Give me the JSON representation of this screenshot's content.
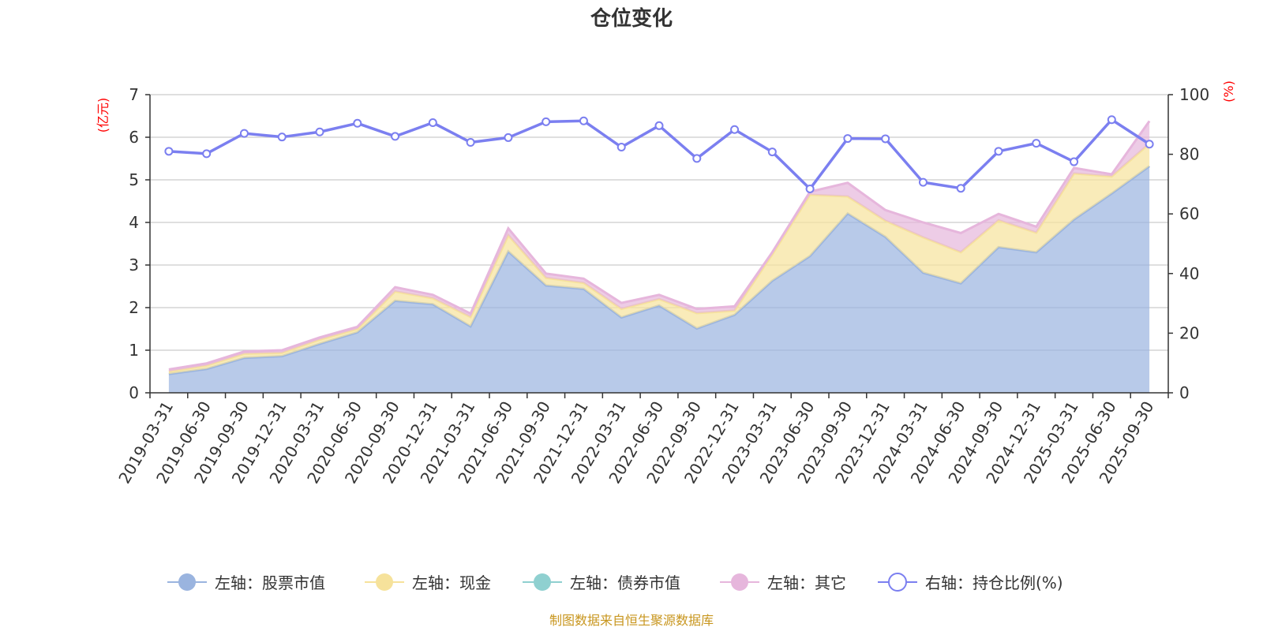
{
  "chart_data": {
    "type": "area",
    "title": "仓位变化",
    "left_axis_unit": "(亿元)",
    "right_axis_unit": "(%)",
    "ylim_left": [
      0,
      7
    ],
    "left_ticks": [
      0,
      1,
      2,
      3,
      4,
      5,
      6,
      7
    ],
    "ylim_right": [
      0,
      100
    ],
    "right_ticks": [
      0,
      20,
      40,
      60,
      80,
      100
    ],
    "grid": true,
    "legend_position": "bottom-center",
    "categories": [
      "2019-03-31",
      "2019-06-30",
      "2019-09-30",
      "2019-12-31",
      "2020-03-31",
      "2020-06-30",
      "2020-09-30",
      "2020-12-31",
      "2021-03-31",
      "2021-06-30",
      "2021-09-30",
      "2021-12-31",
      "2022-03-31",
      "2022-06-30",
      "2022-09-30",
      "2022-12-31",
      "2023-03-31",
      "2023-06-30",
      "2023-09-30",
      "2023-12-31",
      "2024-03-31",
      "2024-06-30",
      "2024-09-30",
      "2024-12-31",
      "2025-03-31",
      "2025-06-30",
      "2025-09-30"
    ],
    "series": [
      {
        "name": "左轴：股票市值",
        "axis": "left",
        "kind": "stacked-area",
        "color": "#9ab4df",
        "values": [
          0.44,
          0.56,
          0.82,
          0.86,
          1.15,
          1.42,
          2.16,
          2.08,
          1.56,
          3.32,
          2.52,
          2.44,
          1.77,
          2.05,
          1.51,
          1.83,
          2.63,
          3.21,
          4.21,
          3.66,
          2.82,
          2.57,
          3.42,
          3.3,
          4.07,
          4.68,
          5.32
        ]
      },
      {
        "name": "左轴：现金",
        "axis": "left",
        "kind": "stacked-area",
        "color": "#f6e29b",
        "values": [
          0.06,
          0.08,
          0.1,
          0.08,
          0.1,
          0.08,
          0.22,
          0.14,
          0.22,
          0.38,
          0.18,
          0.14,
          0.2,
          0.15,
          0.36,
          0.1,
          0.62,
          1.44,
          0.4,
          0.38,
          0.83,
          0.73,
          0.63,
          0.46,
          1.08,
          0.4,
          0.53
        ]
      },
      {
        "name": "左轴：债券市值",
        "axis": "left",
        "kind": "stacked-area",
        "color": "#8fd0d0",
        "values": [
          0,
          0,
          0,
          0,
          0,
          0,
          0,
          0,
          0,
          0,
          0,
          0,
          0,
          0,
          0,
          0,
          0,
          0,
          0,
          0,
          0,
          0,
          0,
          0,
          0,
          0,
          0
        ]
      },
      {
        "name": "左轴：其它",
        "axis": "left",
        "kind": "stacked-area",
        "color": "#e6b6dc",
        "values": [
          0.05,
          0.05,
          0.05,
          0.06,
          0.05,
          0.05,
          0.1,
          0.08,
          0.08,
          0.16,
          0.1,
          0.1,
          0.14,
          0.1,
          0.1,
          0.1,
          0.05,
          0.07,
          0.32,
          0.25,
          0.35,
          0.45,
          0.15,
          0.14,
          0.13,
          0.05,
          0.53
        ]
      },
      {
        "name": "右轴：持仓比例(%)",
        "axis": "right",
        "kind": "line",
        "color": "#7b7ff0",
        "values": [
          81.0,
          80.2,
          87.0,
          85.8,
          87.5,
          90.4,
          86.0,
          90.6,
          84.0,
          85.6,
          90.9,
          91.2,
          82.4,
          89.6,
          78.6,
          88.3,
          80.8,
          68.4,
          85.3,
          85.2,
          70.6,
          68.6,
          81.0,
          83.7,
          77.5,
          91.6,
          83.4
        ]
      }
    ],
    "source_note": "制图数据来自恒生聚源数据库"
  }
}
